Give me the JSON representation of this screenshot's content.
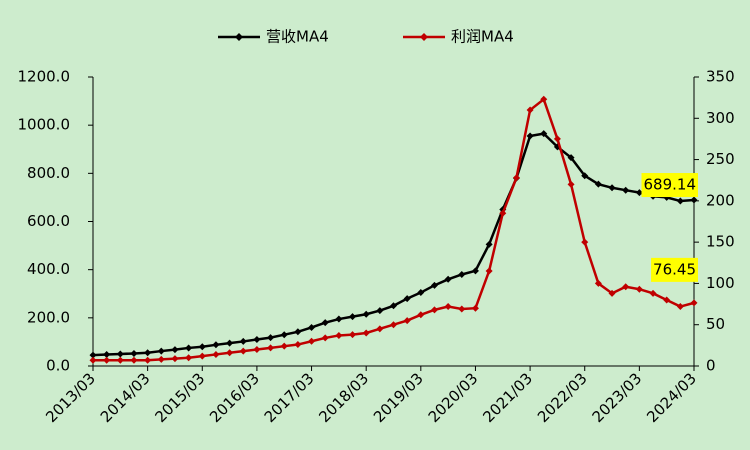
{
  "chart_data": {
    "type": "line",
    "categories": [
      "2013/03",
      null,
      null,
      null,
      "2014/03",
      null,
      null,
      null,
      "2015/03",
      null,
      null,
      null,
      "2016/03",
      null,
      null,
      null,
      "2017/03",
      null,
      null,
      null,
      "2018/03",
      null,
      null,
      null,
      "2019/03",
      null,
      null,
      null,
      "2020/03",
      null,
      null,
      null,
      "2021/03",
      null,
      null,
      null,
      "2022/03",
      null,
      null,
      null,
      "2023/03",
      null,
      null,
      null,
      "2024/03"
    ],
    "series": [
      {
        "name": "营收MA4",
        "color": "#000000",
        "axis": "y",
        "end_label": true,
        "values": [
          45,
          48,
          50,
          52,
          55,
          62,
          68,
          75,
          80,
          88,
          95,
          102,
          110,
          118,
          130,
          142,
          160,
          180,
          195,
          205,
          215,
          230,
          250,
          280,
          305,
          335,
          360,
          380,
          395,
          505,
          650,
          780,
          955,
          965,
          910,
          865,
          790,
          755,
          740,
          730,
          720,
          705,
          700,
          685,
          689.14
        ]
      },
      {
        "name": "利润MA4",
        "color": "#c00000",
        "axis": "y2",
        "end_label": true,
        "values": [
          7,
          7,
          7,
          7,
          7,
          8,
          9,
          10,
          12,
          14,
          16,
          18,
          20,
          22,
          24,
          26,
          30,
          34,
          37,
          38,
          40,
          45,
          50,
          55,
          62,
          68,
          72,
          69,
          70,
          115,
          185,
          228,
          310,
          323,
          275,
          220,
          150,
          100,
          88,
          96,
          93,
          88,
          80,
          72,
          76.45
        ]
      }
    ],
    "ylim": [
      0,
      1200
    ],
    "yticks": [
      {
        "value": 0,
        "label": "0.0"
      },
      {
        "value": 200,
        "label": "200.0"
      },
      {
        "value": 400,
        "label": "400.0"
      },
      {
        "value": 600,
        "label": "600.0"
      },
      {
        "value": 800,
        "label": "800.0"
      },
      {
        "value": 1000,
        "label": "1000.0"
      },
      {
        "value": 1200,
        "label": "1200.0"
      }
    ],
    "y2lim": [
      0,
      350
    ],
    "y2ticks": [
      0,
      50,
      100,
      150,
      200,
      250,
      300,
      350
    ],
    "legend": "top"
  }
}
